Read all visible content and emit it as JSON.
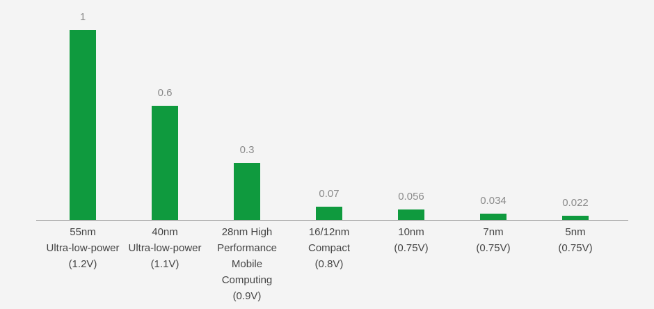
{
  "chart_data": {
    "type": "bar",
    "categories": [
      "55nm\nUltra-low-power\n(1.2V)",
      "40nm\nUltra-low-power\n(1.1V)",
      "28nm High\nPerformance\nMobile\nComputing\n(0.9V)",
      "16/12nm\nCompact\n(0.8V)",
      "10nm\n(0.75V)",
      "7nm\n(0.75V)",
      "5nm\n(0.75V)"
    ],
    "values": [
      1,
      0.6,
      0.3,
      0.07,
      0.056,
      0.034,
      0.022
    ],
    "color": "#0f9a3e"
  }
}
